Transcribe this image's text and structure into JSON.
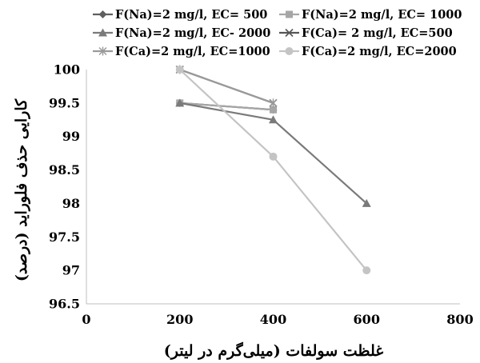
{
  "chart_data": {
    "type": "scatter",
    "xlabel": "غلظت سولفات (میلی‌گرم در لیتر)",
    "ylabel": "کارایی حذف فلوراید (درصد)",
    "xlim": [
      0,
      800
    ],
    "ylim": [
      96.5,
      100
    ],
    "x_ticks": [
      "0",
      "200",
      "400",
      "600",
      "800"
    ],
    "y_ticks": [
      "96.5",
      "97",
      "97.5",
      "98",
      "98.5",
      "99",
      "99.5",
      "100"
    ],
    "x_tick_values": [
      0,
      200,
      400,
      600,
      800
    ],
    "y_tick_values": [
      96.5,
      97,
      97.5,
      98,
      98.5,
      99,
      99.5,
      100
    ],
    "grid": false,
    "legend_position": "top",
    "series": [
      {
        "name": "F(Na)=2 mg/l, EC= 500",
        "color": "#5f5f5f",
        "marker": "diamond",
        "x": [
          200,
          400
        ],
        "y": [
          99.5,
          99.4
        ]
      },
      {
        "name": "F(Na)=2 mg/l, EC= 1000",
        "color": "#a6a6a6",
        "marker": "square",
        "x": [
          200,
          400
        ],
        "y": [
          99.5,
          99.4
        ]
      },
      {
        "name": "F(Na)=2 mg/l, EC- 2000",
        "color": "#7a7a7a",
        "marker": "triangle",
        "x": [
          200,
          400,
          600
        ],
        "y": [
          99.5,
          99.25,
          98.0
        ]
      },
      {
        "name": "F(Ca)= 2 mg/l, EC=500",
        "color": "#555555",
        "marker": "x",
        "x": [
          200,
          400
        ],
        "y": [
          100,
          99.5
        ]
      },
      {
        "name": "F(Ca)=2 mg/l, EC=1000",
        "color": "#9a9a9a",
        "marker": "star",
        "x": [
          200,
          400
        ],
        "y": [
          100,
          99.5
        ]
      },
      {
        "name": "F(Ca)=2 mg/l, EC=2000",
        "color": "#c4c4c4",
        "marker": "circle",
        "x": [
          200,
          400,
          600
        ],
        "y": [
          100,
          98.7,
          97.0
        ]
      }
    ]
  }
}
